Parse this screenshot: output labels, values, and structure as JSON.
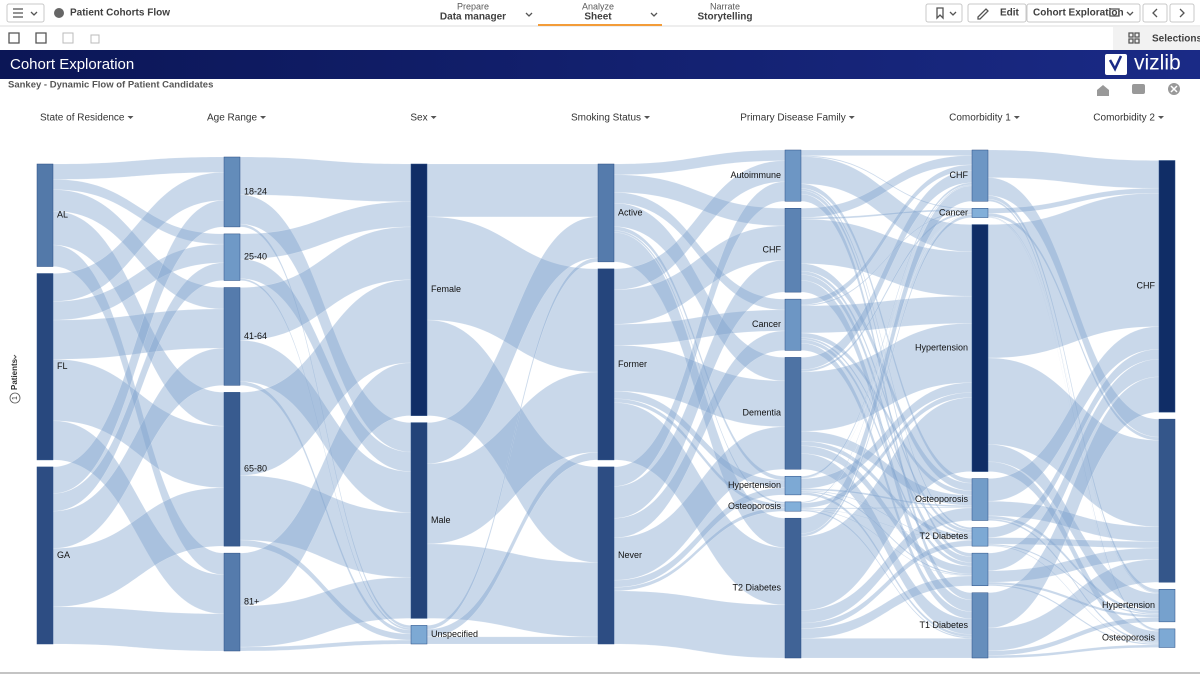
{
  "header": {
    "app_title": "Patient Cohorts Flow",
    "tabs": [
      {
        "caption": "Prepare",
        "label": "Data manager"
      },
      {
        "caption": "Analyze",
        "label": "Sheet"
      },
      {
        "caption": "Narrate",
        "label": "Storytelling"
      }
    ],
    "edit": "Edit",
    "sheet_name": "Cohort Exploration",
    "selections": "Selections"
  },
  "sheet": {
    "title": "Cohort Exploration",
    "logo": "vizlib"
  },
  "chart_data": {
    "type": "sankey",
    "title": "Sankey - Dynamic Flow of Patient Candidates",
    "axis_badge": "1",
    "axis_label": "Patients",
    "columns": [
      {
        "name": "State of Residence",
        "nodes": [
          {
            "label": "AL",
            "value": 22
          },
          {
            "label": "FL",
            "value": 40
          },
          {
            "label": "GA",
            "value": 38
          }
        ]
      },
      {
        "name": "Age Range",
        "nodes": [
          {
            "label": "18-24",
            "value": 15
          },
          {
            "label": "25-40",
            "value": 10
          },
          {
            "label": "41-64",
            "value": 21
          },
          {
            "label": "65-80",
            "value": 33
          },
          {
            "label": "81+",
            "value": 21
          }
        ]
      },
      {
        "name": "Sex",
        "nodes": [
          {
            "label": "Female",
            "value": 54
          },
          {
            "label": "Male",
            "value": 42
          },
          {
            "label": "Unspecified",
            "value": 4
          }
        ]
      },
      {
        "name": "Smoking Status",
        "nodes": [
          {
            "label": "Active",
            "value": 21
          },
          {
            "label": "Former",
            "value": 41
          },
          {
            "label": "Never",
            "value": 38
          }
        ]
      },
      {
        "name": "Primary Disease Family",
        "nodes": [
          {
            "label": "Autoimmune",
            "value": 11
          },
          {
            "label": "CHF",
            "value": 18
          },
          {
            "label": "Cancer",
            "value": 11
          },
          {
            "label": "Dementia",
            "value": 24
          },
          {
            "label": "Hypertension",
            "value": 4
          },
          {
            "label": "Osteoporosis",
            "value": 2
          },
          {
            "label": "T2 Diabetes",
            "value": 30
          }
        ]
      },
      {
        "name": "Comorbidity 1",
        "nodes": [
          {
            "label": "CHF",
            "value": 11
          },
          {
            "label": "Cancer",
            "value": 2
          },
          {
            "label": "Hypertension",
            "value": 53
          },
          {
            "label": "Osteoporosis",
            "value": 9
          },
          {
            "label": "T2 Diabetes",
            "value": 4
          },
          {
            "label": null,
            "value": 7
          },
          {
            "label": "T1 Diabetes",
            "value": 14
          }
        ]
      },
      {
        "name": "Comorbidity 2",
        "nodes": [
          {
            "label": "CHF",
            "value": 54
          },
          {
            "label": null,
            "value": 35
          },
          {
            "label": "Hypertension",
            "value": 7
          },
          {
            "label": "Osteoporosis",
            "value": 4
          }
        ]
      }
    ]
  }
}
